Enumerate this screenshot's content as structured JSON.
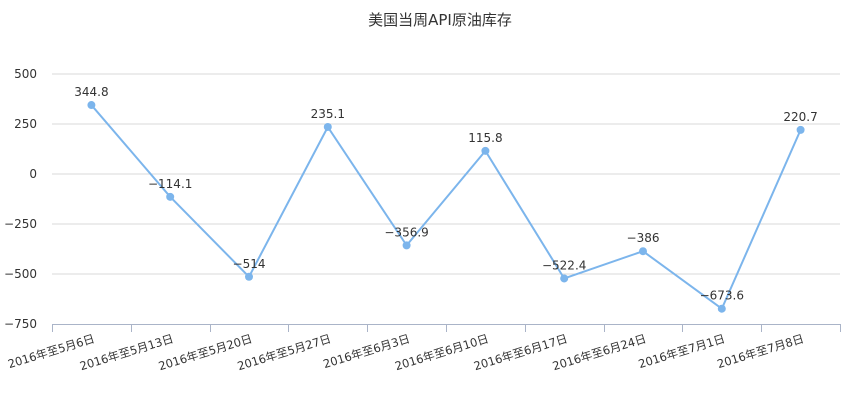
{
  "chart_data": {
    "type": "line",
    "title": "美国当周API原油库存",
    "xlabel": "",
    "ylabel": "",
    "categories": [
      "2016年至5月6日",
      "2016年至5月13日",
      "2016年至5月20日",
      "2016年至5月27日",
      "2016年至6月3日",
      "2016年至6月10日",
      "2016年至6月17日",
      "2016年至6月24日",
      "2016年至7月1日",
      "2016年至7月8日"
    ],
    "series": [
      {
        "values": [
          344.8,
          -114.1,
          -514,
          235.1,
          -356.9,
          115.8,
          -522.4,
          -386,
          -673.6,
          220.7
        ],
        "labels": [
          "344.8",
          "−114.1",
          "−514",
          "235.1",
          "−356.9",
          "115.8",
          "−522.4",
          "−386",
          "−673.6",
          "220.7"
        ],
        "color": "#7cb5ec"
      }
    ],
    "ylim": [
      -750,
      500
    ],
    "yticks": [
      500,
      250,
      0,
      -250,
      -500,
      -750
    ],
    "ytick_labels": [
      "500",
      "250",
      "0",
      "−250",
      "−500",
      "−750"
    ],
    "grid": true,
    "legend": "none"
  }
}
